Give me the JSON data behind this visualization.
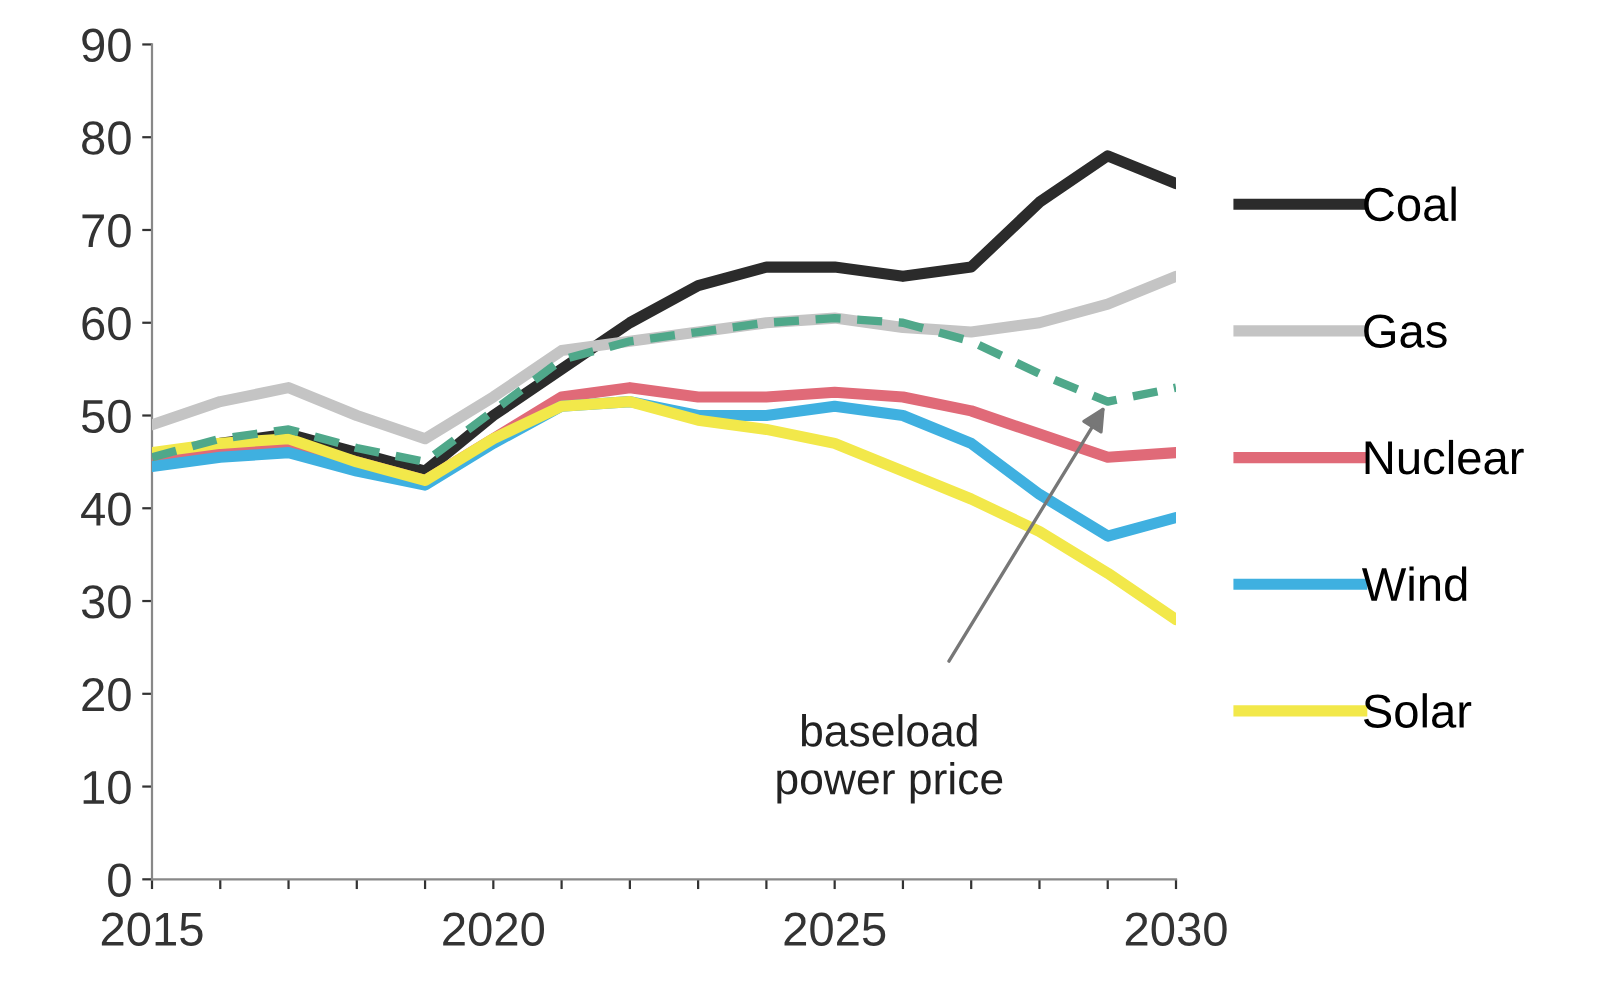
{
  "chart_data": {
    "type": "line",
    "x": [
      2015,
      2016,
      2017,
      2018,
      2019,
      2020,
      2021,
      2022,
      2023,
      2024,
      2025,
      2026,
      2027,
      2028,
      2029,
      2030
    ],
    "series": [
      {
        "name": "Coal",
        "color": "#2b2b2b",
        "values": [
          45,
          47,
          48,
          46,
          44,
          50,
          55,
          60,
          64,
          66,
          66,
          65,
          66,
          73,
          78,
          75
        ]
      },
      {
        "name": "Gas",
        "color": "#c4c4c4",
        "values": [
          49,
          51.5,
          53,
          50,
          47.5,
          52,
          57,
          58,
          59,
          60,
          60.5,
          59.5,
          59,
          60,
          62,
          65
        ]
      },
      {
        "name": "Nuclear",
        "color": "#e06a78",
        "values": [
          45,
          46.5,
          47,
          45,
          43,
          47.5,
          52,
          53,
          52,
          52,
          52.5,
          52,
          50.5,
          48,
          45.5,
          46
        ]
      },
      {
        "name": "Wind",
        "color": "#3fb0e0",
        "values": [
          44.5,
          45.5,
          46,
          44,
          42.5,
          47,
          51,
          51.5,
          50,
          50,
          51,
          50,
          47,
          41.5,
          37,
          39
        ]
      },
      {
        "name": "Solar",
        "color": "#f2e84a",
        "values": [
          46,
          47,
          47.5,
          45,
          43,
          47.5,
          51,
          51.5,
          49.5,
          48.5,
          47,
          44,
          41,
          37.5,
          33,
          28
        ]
      },
      {
        "color": "#4fa88a",
        "line_style": "dashed",
        "values": [
          45.5,
          47.5,
          48.5,
          46.5,
          45,
          50.5,
          56,
          58,
          59,
          60,
          60.5,
          60,
          58,
          54.5,
          51.5,
          53
        ]
      }
    ],
    "xlim": [
      2015,
      2030
    ],
    "ylim": [
      0,
      90
    ],
    "xticks": [
      2015,
      {
        "value": 2016,
        "label": null
      },
      {
        "value": 2017,
        "label": null
      },
      {
        "value": 2018,
        "label": null
      },
      {
        "value": 2019,
        "label": null
      },
      2020,
      {
        "value": 2021,
        "label": null
      },
      {
        "value": 2022,
        "label": null
      },
      {
        "value": 2023,
        "label": null
      },
      {
        "value": 2024,
        "label": null
      },
      2025,
      {
        "value": 2026,
        "label": null
      },
      {
        "value": 2027,
        "label": null
      },
      {
        "value": 2028,
        "label": null
      },
      {
        "value": 2029,
        "label": null
      },
      2030
    ],
    "yticks": [
      0,
      10,
      20,
      30,
      40,
      50,
      60,
      70,
      80,
      90
    ],
    "grid": false,
    "legend": "right",
    "marker": "none",
    "line_style": "solid",
    "annotations": [
      {
        "text": "baseload\npower price",
        "x": 2029,
        "y": 51.5
      }
    ]
  }
}
